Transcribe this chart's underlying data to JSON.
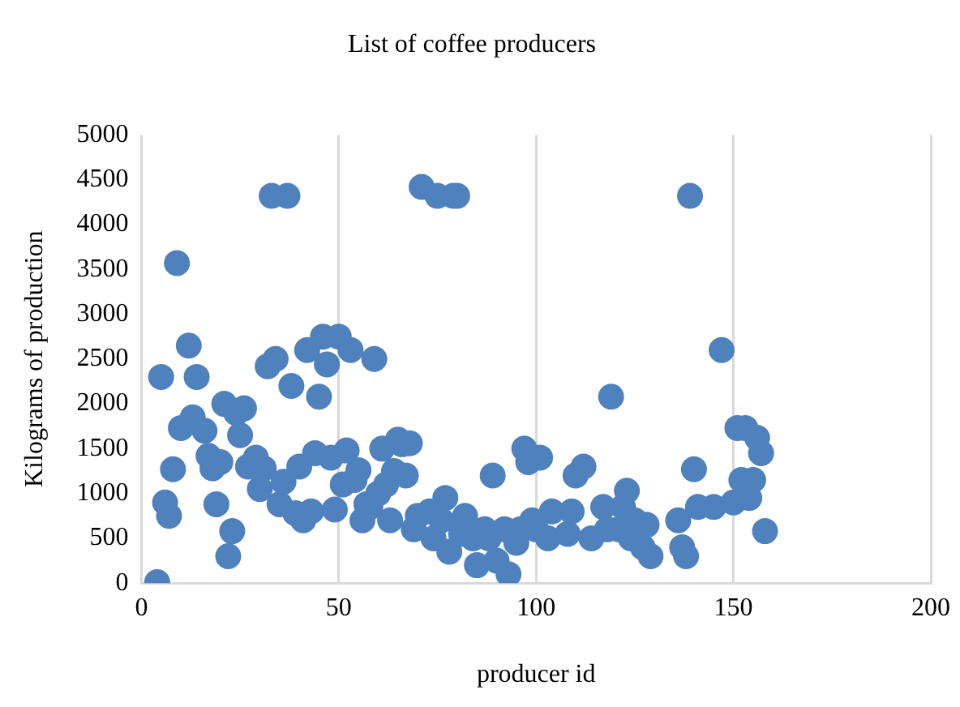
{
  "chart_data": {
    "type": "scatter",
    "title": "List of coffee producers",
    "xlabel": "producer id",
    "ylabel": "Kilograms of production",
    "marker": "circle",
    "grid": "x",
    "legend": false,
    "xlim": [
      0,
      200
    ],
    "xticks": [
      0,
      50,
      100,
      150,
      200
    ],
    "ylim": [
      0,
      5000
    ],
    "yticks": [
      0,
      500,
      1000,
      1500,
      2000,
      2500,
      3000,
      3500,
      4000,
      4500,
      5000
    ],
    "series": [
      {
        "color": "#4f81bd",
        "x": [
          4,
          5,
          6,
          7,
          8,
          9,
          10,
          12,
          13,
          14,
          16,
          17,
          18,
          19,
          20,
          21,
          22,
          23,
          24,
          25,
          26,
          27,
          29,
          30,
          31,
          32,
          33,
          34,
          35,
          36,
          37,
          38,
          39,
          40,
          41,
          42,
          43,
          44,
          45,
          46,
          47,
          48,
          49,
          50,
          51,
          52,
          53,
          54,
          55,
          56,
          57,
          58,
          59,
          60,
          61,
          62,
          63,
          64,
          65,
          66,
          67,
          68,
          69,
          70,
          71,
          73,
          74,
          75,
          76,
          77,
          78,
          79,
          80,
          81,
          82,
          84,
          85,
          87,
          88,
          89,
          90,
          92,
          93,
          95,
          96,
          97,
          98,
          99,
          100,
          101,
          103,
          104,
          108,
          109,
          110,
          112,
          114,
          117,
          118,
          119,
          121,
          122,
          123,
          124,
          125,
          127,
          128,
          129,
          136,
          137,
          138,
          139,
          140,
          141,
          145,
          147,
          150,
          151,
          152,
          153,
          154,
          155,
          156,
          157,
          158
        ],
        "values": [
          10,
          2300,
          900,
          750,
          1270,
          3570,
          1730,
          2650,
          1850,
          2300,
          1700,
          1420,
          1280,
          880,
          1350,
          2000,
          300,
          580,
          1900,
          1650,
          1950,
          1300,
          1400,
          1050,
          1280,
          2420,
          4320,
          2500,
          880,
          1130,
          4320,
          2200,
          780,
          1300,
          700,
          2600,
          800,
          1450,
          2080,
          2750,
          2440,
          1400,
          820,
          2750,
          1100,
          1480,
          2600,
          1150,
          1260,
          700,
          880,
          850,
          2500,
          1000,
          1500,
          1100,
          700,
          1250,
          1600,
          1550,
          1200,
          1560,
          600,
          750,
          4420,
          800,
          500,
          4320,
          700,
          950,
          350,
          4320,
          4320,
          550,
          750,
          500,
          200,
          600,
          500,
          1200,
          250,
          600,
          100,
          450,
          600,
          1500,
          1350,
          700,
          600,
          1400,
          500,
          800,
          550,
          800,
          1200,
          1300,
          500,
          850,
          600,
          2080,
          600,
          850,
          1030,
          500,
          700,
          400,
          650,
          300,
          700,
          400,
          300,
          4320,
          1270,
          850,
          850,
          2600,
          900,
          1730,
          1150,
          1730,
          950,
          1150,
          1620,
          1450,
          580
        ]
      }
    ]
  }
}
